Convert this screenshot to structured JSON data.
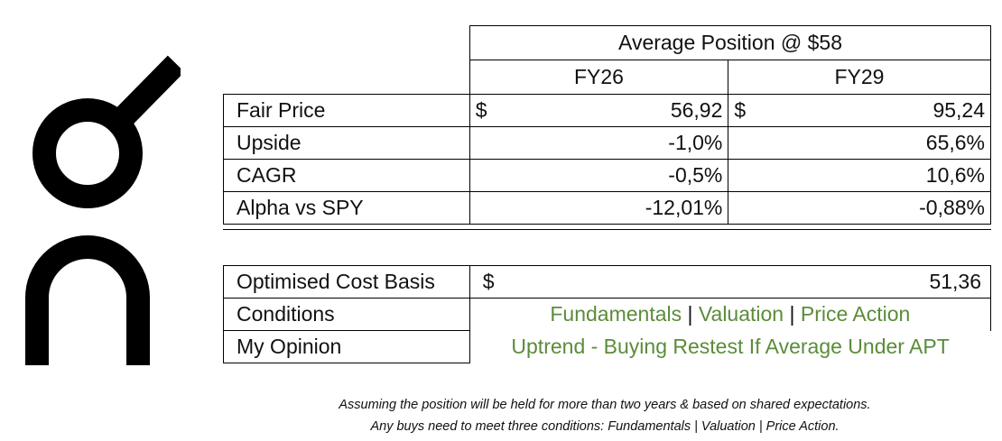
{
  "header": {
    "title": "Average Position @ $58",
    "col1": "FY26",
    "col2": "FY29"
  },
  "metrics": {
    "rows": [
      {
        "label": "Fair Price",
        "fy26": "56,92",
        "fy29": "95,24",
        "currency": "$"
      },
      {
        "label": "Upside",
        "fy26": "-1,0%",
        "fy29": "65,6%"
      },
      {
        "label": "CAGR",
        "fy26": "-0,5%",
        "fy29": "10,6%"
      },
      {
        "label": "Alpha vs SPY",
        "fy26": "-12,01%",
        "fy29": "-0,88%"
      }
    ]
  },
  "summary": {
    "cost_basis_label": "Optimised Cost Basis",
    "cost_basis_currency": "$",
    "cost_basis_value": "51,36",
    "conditions_label": "Conditions",
    "conditions": [
      "Fundamentals",
      "Valuation",
      "Price Action"
    ],
    "separator": "|",
    "opinion_label": "My Opinion",
    "opinion_value": "Uptrend - Buying Restest If Average Under APT"
  },
  "footnotes": {
    "line1": "Assuming the position will be held for more than two years & based on shared expectations.",
    "line2": "Any buys need to meet three conditions: Fundamentals | Valuation | Price Action."
  },
  "colors": {
    "accent_green": "#5b8c3a",
    "logo": "#000000"
  }
}
